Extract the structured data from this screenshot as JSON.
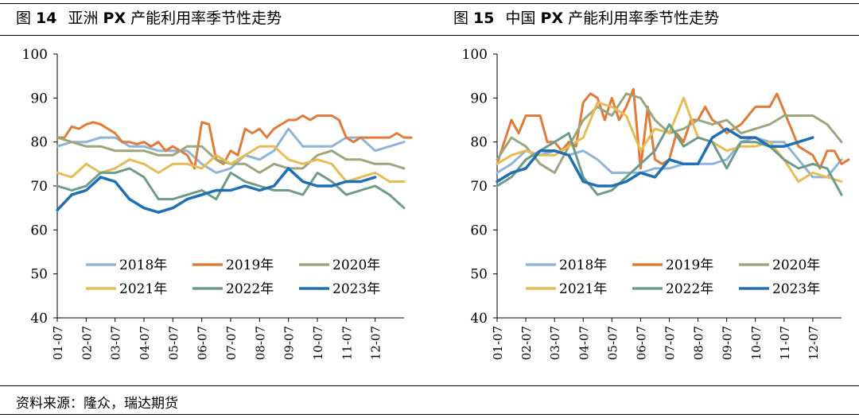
{
  "footer": {
    "source": "资料来源：隆众，瑞达期货"
  },
  "colors": {
    "2018年": "#8fb4d8",
    "2019年": "#e07b39",
    "2020年": "#9aa67c",
    "2021年": "#e8bb55",
    "2022年": "#6b9c8a",
    "2023年": "#1f6fb4"
  },
  "chart_data": [
    {
      "type": "line",
      "fig_label": "图",
      "fig_number": "14",
      "title": "亚洲 PX 产能利用率季节性走势",
      "title_parts": {
        "pre": "亚洲 ",
        "bold": "PX",
        "post": " 产能利用率季节性走势"
      },
      "x_ticks": [
        "01-07",
        "02-07",
        "03-07",
        "04-07",
        "05-07",
        "06-07",
        "07-07",
        "08-07",
        "09-07",
        "10-07",
        "11-07",
        "12-07"
      ],
      "xlim": [
        0,
        12
      ],
      "ylim": [
        40,
        100
      ],
      "y_ticks": [
        40,
        50,
        60,
        70,
        80,
        90,
        100
      ],
      "legend": [
        "2018年",
        "2019年",
        "2020年",
        "2021年",
        "2022年",
        "2023年"
      ],
      "legend_position": "bottom-inside",
      "grid": false,
      "series": [
        {
          "name": "2018年",
          "x": [
            0,
            0.5,
            1,
            1.5,
            2,
            2.5,
            3,
            3.5,
            4,
            4.5,
            5,
            5.5,
            6,
            6.5,
            7,
            7.5,
            8,
            8.5,
            9,
            9.5,
            10,
            10.5,
            11,
            11.5,
            12
          ],
          "y": [
            79,
            80,
            80,
            81,
            81,
            79,
            79,
            78,
            78,
            78,
            75,
            73,
            74,
            77,
            76,
            78,
            83,
            79,
            79,
            79,
            81,
            81,
            78,
            79,
            80
          ]
        },
        {
          "name": "2019年",
          "x": [
            0,
            0.25,
            0.5,
            0.75,
            1,
            1.25,
            1.5,
            1.75,
            2,
            2.25,
            2.5,
            2.75,
            3,
            3.25,
            3.5,
            3.75,
            4,
            4.25,
            4.5,
            4.75,
            5,
            5.25,
            5.5,
            5.75,
            6,
            6.25,
            6.5,
            6.75,
            7,
            7.25,
            7.5,
            7.75,
            8,
            8.25,
            8.5,
            8.75,
            9,
            9.25,
            9.5,
            9.75,
            10,
            10.25,
            10.5,
            10.75,
            11,
            11.25,
            11.5,
            11.75,
            12,
            12.25
          ],
          "y": [
            81,
            81,
            83.5,
            83,
            84,
            84.5,
            84,
            83,
            82,
            80,
            80,
            79.5,
            80,
            79,
            80,
            78,
            79,
            78,
            77,
            74,
            84.5,
            84,
            76,
            75,
            78,
            77,
            83,
            82,
            83,
            81,
            83,
            84,
            85,
            85,
            86,
            85,
            86,
            86,
            86,
            85,
            81,
            80,
            81,
            81,
            81,
            81,
            81,
            82,
            81,
            81
          ]
        },
        {
          "name": "2020年",
          "x": [
            0,
            0.5,
            1,
            1.5,
            2,
            2.5,
            3,
            3.5,
            4,
            4.5,
            5,
            5.5,
            6,
            6.5,
            7,
            7.5,
            8,
            8.5,
            9,
            9.5,
            10,
            10.5,
            11,
            11.5,
            12
          ],
          "y": [
            81,
            80,
            79,
            79,
            78,
            78,
            78,
            77,
            77,
            79,
            79,
            76,
            75,
            75,
            73,
            75,
            74,
            74,
            77,
            78,
            76,
            76,
            75,
            75,
            74
          ]
        },
        {
          "name": "2021年",
          "x": [
            0,
            0.5,
            1,
            1.5,
            2,
            2.5,
            3,
            3.5,
            4,
            4.5,
            5,
            5.5,
            6,
            6.5,
            7,
            7.5,
            8,
            8.5,
            9,
            9.5,
            10,
            10.5,
            11,
            11.5,
            12
          ],
          "y": [
            73,
            72,
            75,
            73,
            74,
            76,
            75,
            73,
            75,
            75,
            74,
            77,
            75,
            77,
            79,
            79,
            76,
            75,
            76,
            75,
            71,
            72,
            73,
            71,
            71
          ]
        },
        {
          "name": "2022年",
          "x": [
            0,
            0.5,
            1,
            1.5,
            2,
            2.5,
            3,
            3.5,
            4,
            4.5,
            5,
            5.5,
            6,
            6.5,
            7,
            7.5,
            8,
            8.5,
            9,
            9.5,
            10,
            10.5,
            11,
            11.5,
            12
          ],
          "y": [
            70,
            69,
            70,
            73,
            73,
            74,
            72,
            67,
            67,
            68,
            69,
            67,
            73,
            71,
            70,
            69,
            69,
            68,
            73,
            71,
            68,
            69,
            70,
            68,
            65
          ]
        },
        {
          "name": "2023年",
          "x": [
            0,
            0.5,
            1,
            1.5,
            2,
            2.5,
            3,
            3.5,
            4,
            4.5,
            5,
            5.5,
            6,
            6.5,
            7,
            7.5,
            8,
            8.5,
            9,
            9.5,
            10,
            10.5,
            11
          ],
          "y": [
            64.5,
            68,
            69,
            72,
            71,
            67,
            65,
            64,
            65,
            67,
            68,
            69,
            69,
            70,
            69,
            70,
            74,
            71,
            70,
            70,
            71,
            71,
            72
          ]
        }
      ]
    },
    {
      "type": "line",
      "fig_label": "图",
      "fig_number": "15",
      "title": "中国 PX 产能利用率季节性走势",
      "title_parts": {
        "pre": "中国 ",
        "bold": "PX",
        "post": " 产能利用率季节性走势"
      },
      "x_ticks": [
        "01-07",
        "02-07",
        "03-07",
        "04-07",
        "05-07",
        "06-07",
        "07-07",
        "08-07",
        "09-07",
        "10-07",
        "11-07",
        "12-07"
      ],
      "xlim": [
        0,
        12
      ],
      "ylim": [
        40,
        100
      ],
      "y_ticks": [
        40,
        50,
        60,
        70,
        80,
        90,
        100
      ],
      "legend": [
        "2018年",
        "2019年",
        "2020年",
        "2021年",
        "2022年",
        "2023年"
      ],
      "legend_position": "bottom-inside",
      "grid": false,
      "series": [
        {
          "name": "2018年",
          "x": [
            0,
            0.5,
            1,
            1.5,
            2,
            2.5,
            3,
            3.5,
            4,
            4.5,
            5,
            5.5,
            6,
            6.5,
            7,
            7.5,
            8,
            8.5,
            9,
            9.5,
            10,
            10.5,
            11,
            11.5,
            12
          ],
          "y": [
            73,
            75,
            78,
            77,
            78,
            77,
            78,
            76,
            73,
            73,
            73,
            74,
            74,
            75,
            75,
            75,
            76,
            80,
            81,
            80,
            80,
            76,
            72,
            72,
            76
          ]
        },
        {
          "name": "2019年",
          "x": [
            0,
            0.25,
            0.5,
            0.75,
            1,
            1.25,
            1.5,
            1.75,
            2,
            2.25,
            2.5,
            2.75,
            3,
            3.25,
            3.5,
            3.75,
            4,
            4.25,
            4.5,
            4.75,
            5,
            5.25,
            5.5,
            5.75,
            6,
            6.25,
            6.5,
            6.75,
            7,
            7.25,
            7.5,
            7.75,
            8,
            8.25,
            8.5,
            8.75,
            9,
            9.25,
            9.5,
            9.75,
            10,
            10.25,
            10.5,
            10.75,
            11,
            11.25,
            11.5,
            11.75,
            12,
            12.25
          ],
          "y": [
            75,
            80,
            85,
            82,
            86,
            86,
            86,
            80,
            80,
            78,
            80,
            79,
            89,
            91,
            90,
            85,
            90,
            85,
            88,
            92,
            74,
            88,
            76,
            75,
            76,
            82,
            80,
            85,
            85,
            88,
            85,
            84,
            82,
            83,
            84,
            86,
            88,
            88,
            88,
            91,
            87,
            83,
            79,
            78,
            77,
            74,
            78,
            78,
            75,
            76
          ]
        },
        {
          "name": "2020年",
          "x": [
            0,
            0.5,
            1,
            1.5,
            2,
            2.5,
            3,
            3.5,
            4,
            4.5,
            5,
            5.5,
            6,
            6.5,
            7,
            7.5,
            8,
            8.5,
            9,
            9.5,
            10,
            10.5,
            11,
            11.5,
            12
          ],
          "y": [
            76,
            81,
            79,
            75,
            73,
            79,
            85,
            88,
            86,
            91,
            90,
            85,
            82,
            83,
            85,
            84,
            85,
            82,
            83,
            84,
            86,
            86,
            86,
            84,
            80
          ]
        },
        {
          "name": "2021年",
          "x": [
            0,
            0.5,
            1,
            1.5,
            2,
            2.5,
            3,
            3.5,
            4,
            4.5,
            5,
            5.5,
            6,
            6.5,
            7,
            7.5,
            8,
            8.5,
            9,
            9.5,
            10,
            10.5,
            11,
            11.5,
            12
          ],
          "y": [
            75,
            77,
            78,
            77,
            77,
            79,
            81,
            89,
            88,
            86,
            78,
            83,
            82,
            90,
            81,
            80,
            78,
            79,
            79,
            80,
            76,
            71,
            73,
            72,
            71
          ]
        },
        {
          "name": "2022年",
          "x": [
            0,
            0.5,
            1,
            1.5,
            2,
            2.5,
            3,
            3.5,
            4,
            4.5,
            5,
            5.5,
            6,
            6.5,
            7,
            7.5,
            8,
            8.5,
            9,
            9.5,
            10,
            10.5,
            11,
            11.5,
            12
          ],
          "y": [
            70,
            72,
            76,
            78,
            80,
            82,
            72,
            68,
            69,
            72,
            75,
            78,
            84,
            79,
            81,
            80,
            74,
            80,
            80,
            79,
            76,
            74,
            75,
            74,
            68
          ]
        },
        {
          "name": "2023年",
          "x": [
            0,
            0.5,
            1,
            1.5,
            2,
            2.5,
            3,
            3.5,
            4,
            4.5,
            5,
            5.5,
            6,
            6.5,
            7,
            7.5,
            8,
            8.5,
            9,
            9.5,
            10,
            10.5,
            11
          ],
          "y": [
            71,
            73,
            74,
            78,
            78,
            77,
            71,
            70,
            70,
            71,
            73,
            72,
            76,
            75,
            75,
            81,
            83,
            81,
            81,
            79,
            79,
            80,
            81
          ]
        }
      ]
    }
  ]
}
